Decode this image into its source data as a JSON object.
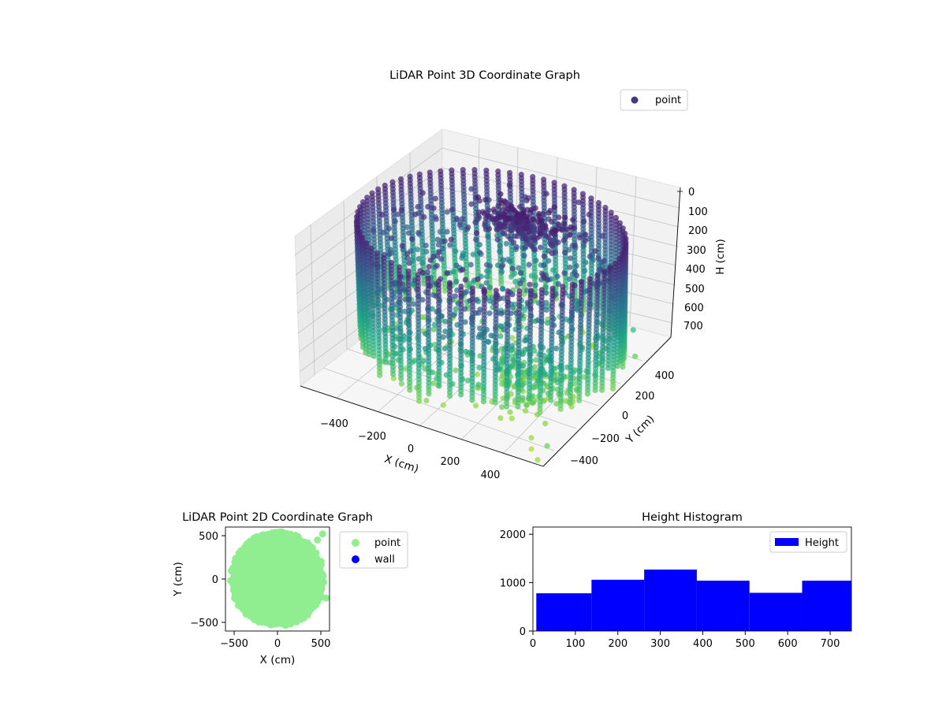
{
  "chart_data": [
    {
      "type": "scatter",
      "projection": "3d",
      "title": "LiDAR Point 3D Coordinate Graph",
      "xlabel": "X (cm)",
      "ylabel": "Y (cm)",
      "zlabel": "H (cm)",
      "x_ticks": [
        "−400",
        "−200",
        "0",
        "200",
        "400"
      ],
      "y_ticks": [
        "−400",
        "−200",
        "0",
        "200",
        "400"
      ],
      "z_ticks": [
        "0",
        "100",
        "200",
        "300",
        "400",
        "500",
        "600",
        "700"
      ],
      "z_inverted": true,
      "xlim": [
        -550,
        550
      ],
      "ylim": [
        -550,
        550
      ],
      "zlim": [
        0,
        750
      ],
      "legend": {
        "entries": [
          "point"
        ],
        "location": "upper right"
      },
      "series": [
        {
          "name": "point",
          "colormap": "viridis",
          "description_points": {
            "wall_radius": 520,
            "height_range": [
              0,
              720
            ],
            "outliers": [
              {
                "x": 430,
                "y": 350,
                "h": 560
              },
              {
                "x": 480,
                "y": 280,
                "h": 640
              },
              {
                "x": 430,
                "y": -330,
                "h": 690
              },
              {
                "x": 420,
                "y": -420,
                "h": 720
              },
              {
                "x": 450,
                "y": -470,
                "h": 740
              },
              {
                "x": 560,
                "y": -540,
                "h": 650
              },
              {
                "x": 530,
                "y": -560,
                "h": 720
              }
            ]
          }
        }
      ],
      "grid": true
    },
    {
      "type": "scatter",
      "title": "LiDAR Point 2D Coordinate Graph",
      "xlabel": "X (cm)",
      "ylabel": "Y (cm)",
      "x_ticks": [
        "−500",
        "0",
        "500"
      ],
      "y_ticks": [
        "500",
        "0",
        "−500"
      ],
      "xlim": [
        -600,
        600
      ],
      "ylim": [
        -600,
        600
      ],
      "legend": {
        "entries": [
          {
            "name": "point",
            "color": "#90ee90"
          },
          {
            "name": "wall",
            "color": "#0000ff"
          }
        ],
        "location": "upper right, outside axes"
      },
      "series": [
        {
          "name": "point",
          "color": "#90ee90",
          "shape": "filled disk",
          "radius_range": [
            520,
            580
          ],
          "extra_points": [
            {
              "x": 520,
              "y": 520
            },
            {
              "x": 460,
              "y": 450
            },
            {
              "x": 560,
              "y": -220
            }
          ]
        },
        {
          "name": "wall",
          "color": "#0000ff",
          "values": []
        }
      ]
    },
    {
      "type": "bar",
      "subtype": "histogram",
      "title": "Height Histogram",
      "xlabel": "",
      "ylabel": "",
      "x_ticks": [
        "0",
        "100",
        "200",
        "300",
        "400",
        "500",
        "600",
        "700"
      ],
      "y_ticks": [
        "0",
        "1000",
        "2000"
      ],
      "xlim": [
        0,
        750
      ],
      "ylim": [
        0,
        2150
      ],
      "color": "#0000ff",
      "legend": {
        "entries": [
          "Height"
        ],
        "location": "upper right"
      },
      "bins": [
        {
          "start": 8,
          "end": 138,
          "value": 780
        },
        {
          "start": 138,
          "end": 262,
          "value": 1060
        },
        {
          "start": 262,
          "end": 386,
          "value": 1270
        },
        {
          "start": 386,
          "end": 510,
          "value": 1040
        },
        {
          "start": 510,
          "end": 634,
          "value": 790
        },
        {
          "start": 634,
          "end": 752,
          "value": 1040
        }
      ]
    }
  ]
}
